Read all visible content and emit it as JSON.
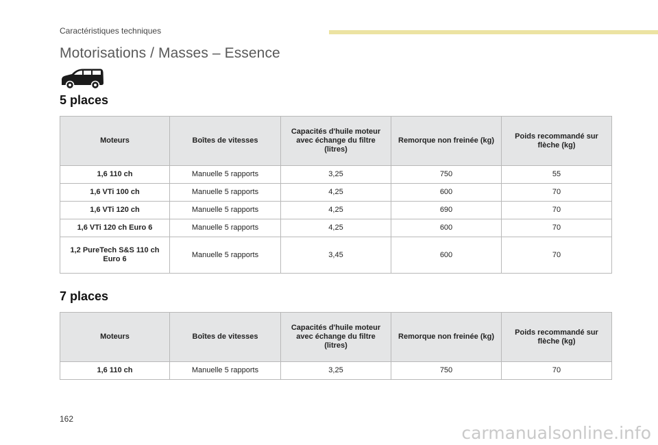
{
  "header": {
    "section": "Caractéristiques techniques"
  },
  "title": "Motorisations / Masses – Essence",
  "icons": {
    "vehicle": "van-icon"
  },
  "columns": [
    "Moteurs",
    "Boîtes de vitesses",
    "Capacités d'huile moteur avec échange du filtre (litres)",
    "Remorque non freinée (kg)",
    "Poids recommandé sur flèche (kg)"
  ],
  "sections": [
    {
      "title": "5 places",
      "rows": [
        {
          "engine": "1,6 110 ch",
          "gearbox": "Manuelle 5 rapports",
          "oil": "3,25",
          "trailer": "750",
          "nose": "55"
        },
        {
          "engine": "1,6 VTi 100 ch",
          "gearbox": "Manuelle 5 rapports",
          "oil": "4,25",
          "trailer": "600",
          "nose": "70"
        },
        {
          "engine": "1,6 VTi 120 ch",
          "gearbox": "Manuelle 5 rapports",
          "oil": "4,25",
          "trailer": "690",
          "nose": "70"
        },
        {
          "engine": "1,6 VTi 120 ch Euro 6",
          "gearbox": "Manuelle 5 rapports",
          "oil": "4,25",
          "trailer": "600",
          "nose": "70"
        },
        {
          "engine": "1,2 PureTech S&S 110 ch Euro 6",
          "gearbox": "Manuelle 5 rapports",
          "oil": "3,45",
          "trailer": "600",
          "nose": "70"
        }
      ]
    },
    {
      "title": "7 places",
      "rows": [
        {
          "engine": "1,6 110 ch",
          "gearbox": "Manuelle 5 rapports",
          "oil": "3,25",
          "trailer": "750",
          "nose": "70"
        }
      ]
    }
  ],
  "page_number": "162",
  "watermark": "carmanualsonline.info",
  "colors": {
    "header_bar": "#ece3a2",
    "table_header_bg": "#e4e5e6",
    "border": "#b8b8b8"
  }
}
